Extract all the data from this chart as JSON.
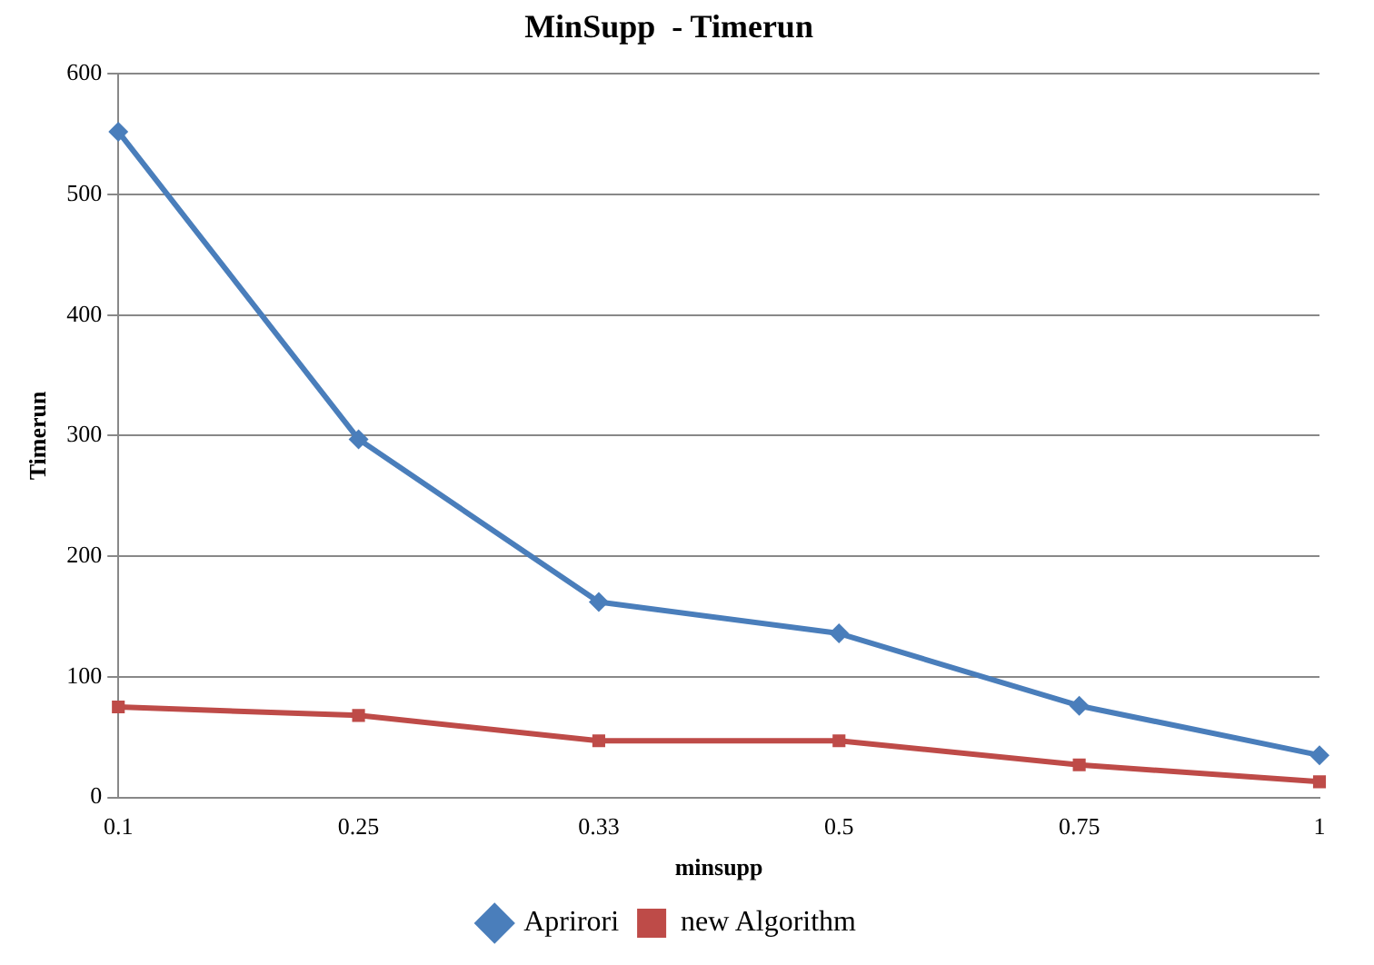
{
  "chart_data": {
    "type": "line",
    "title": "MinSupp  - Timerun",
    "xlabel": "minsupp",
    "ylabel": "Timerun",
    "categories": [
      "0.1",
      "0.25",
      "0.33",
      "0.5",
      "0.75",
      "1"
    ],
    "series": [
      {
        "name": "Aprirori",
        "color": "#4a7ebb",
        "marker": "diamond",
        "values": [
          552,
          297,
          162,
          136,
          76,
          35
        ]
      },
      {
        "name": "new Algorithm",
        "color": "#be4b48",
        "marker": "square",
        "values": [
          75,
          68,
          47,
          47,
          27,
          13
        ]
      }
    ],
    "ylim": [
      0,
      600
    ],
    "yticks": [
      0,
      100,
      200,
      300,
      400,
      500,
      600
    ],
    "grid": "y",
    "legend": "bottom",
    "line_style": "solid"
  }
}
